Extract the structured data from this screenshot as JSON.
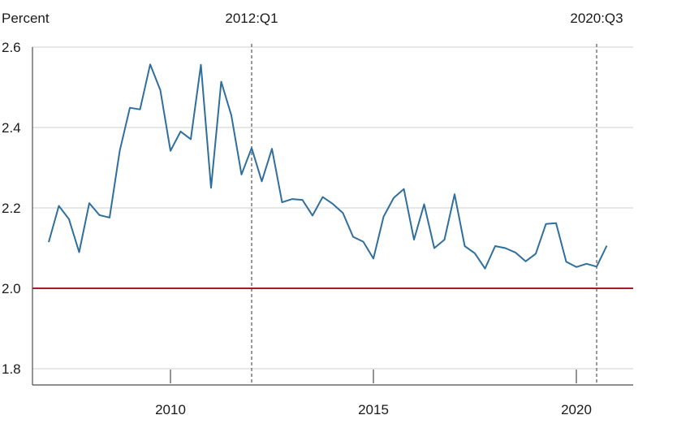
{
  "chart_data": {
    "type": "line",
    "ylabel": "Percent",
    "ylim": [
      1.8,
      2.6
    ],
    "y_ticks": [
      "1.8",
      "2.0",
      "2.2",
      "2.4",
      "2.6"
    ],
    "y_tick_values": [
      1.8,
      2.0,
      2.2,
      2.4,
      2.6
    ],
    "x_ticks": [
      "2010",
      "2015",
      "2020"
    ],
    "x_tick_values": [
      2010.0,
      2015.0,
      2020.0
    ],
    "xlim": [
      2006.6,
      2021.4
    ],
    "grid": "horizontal",
    "colors": {
      "series": "#2e6f9e",
      "reference": "#a51c24",
      "vline": "#6e6e6e"
    },
    "reference_line": {
      "y": 2.0
    },
    "vlines": [
      {
        "label": "2012:Q1",
        "x": 2012.0
      },
      {
        "label": "2020:Q3",
        "x": 2020.5
      }
    ],
    "series": [
      {
        "x": [
          2007.0,
          2007.25,
          2007.5,
          2007.75,
          2008.0,
          2008.25,
          2008.5,
          2008.75,
          2009.0,
          2009.25,
          2009.5,
          2009.75,
          2010.0,
          2010.25,
          2010.5,
          2010.75,
          2011.0,
          2011.25,
          2011.5,
          2011.75,
          2012.0,
          2012.25,
          2012.5,
          2012.75,
          2013.0,
          2013.25,
          2013.5,
          2013.75,
          2014.0,
          2014.25,
          2014.5,
          2014.75,
          2015.0,
          2015.25,
          2015.5,
          2015.75,
          2016.0,
          2016.25,
          2016.5,
          2016.75,
          2017.0,
          2017.25,
          2017.5,
          2017.75,
          2018.0,
          2018.25,
          2018.5,
          2018.75,
          2019.0,
          2019.25,
          2019.5,
          2019.75,
          2020.0,
          2020.25,
          2020.5,
          2020.75
        ],
        "values": [
          2.115,
          2.205,
          2.172,
          2.09,
          2.212,
          2.182,
          2.176,
          2.342,
          2.449,
          2.445,
          2.557,
          2.493,
          2.342,
          2.39,
          2.371,
          2.556,
          2.25,
          2.514,
          2.43,
          2.283,
          2.349,
          2.266,
          2.347,
          2.214,
          2.222,
          2.22,
          2.181,
          2.227,
          2.21,
          2.187,
          2.128,
          2.116,
          2.074,
          2.178,
          2.225,
          2.247,
          2.121,
          2.209,
          2.1,
          2.121,
          2.234,
          2.105,
          2.087,
          2.049,
          2.105,
          2.1,
          2.089,
          2.067,
          2.086,
          2.16,
          2.162,
          2.066,
          2.053,
          2.061,
          2.054,
          2.106
        ]
      }
    ]
  }
}
